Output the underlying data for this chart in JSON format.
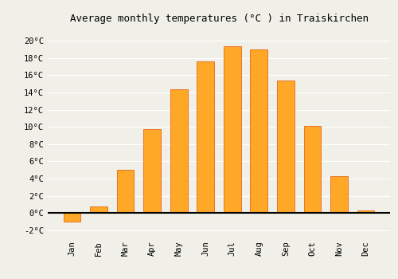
{
  "title": "Average monthly temperatures (°C ) in Traiskirchen",
  "months": [
    "Jan",
    "Feb",
    "Mar",
    "Apr",
    "May",
    "Jun",
    "Jul",
    "Aug",
    "Sep",
    "Oct",
    "Nov",
    "Dec"
  ],
  "values": [
    -1.0,
    0.8,
    5.0,
    9.7,
    14.4,
    17.6,
    19.4,
    19.0,
    15.4,
    10.1,
    4.3,
    0.3
  ],
  "bar_color": "#FFA726",
  "bar_edge_color": "#E65100",
  "bar_edge_width": 0.5,
  "background_color": "#F0F0E8",
  "ylim": [
    -2.8,
    21.5
  ],
  "yticks": [
    0,
    2,
    4,
    6,
    8,
    10,
    12,
    14,
    16,
    18,
    20
  ],
  "ytick_extra": -2,
  "grid_color": "#FFFFFF",
  "title_fontsize": 9,
  "tick_fontsize": 7.5,
  "xlabel_rotation": 90,
  "bar_width": 0.65
}
